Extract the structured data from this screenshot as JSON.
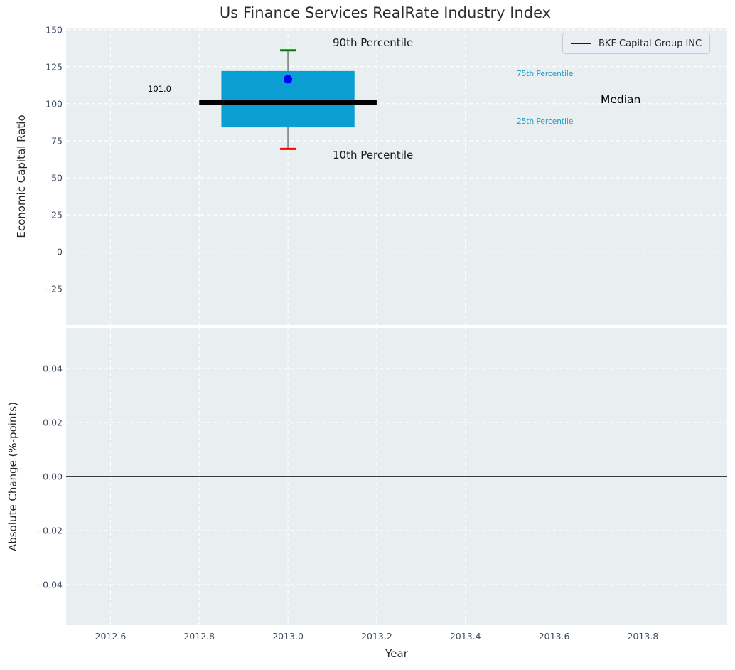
{
  "chart_data": {
    "type": "box",
    "title": "Us Finance Services RealRate Industry Index",
    "legend": {
      "label": "BKF Capital Group INC",
      "position": "upper right"
    },
    "xlabel": "Year",
    "grid": true,
    "xlim": [
      2012.5,
      2013.99
    ],
    "xtick_values": [
      2012.6,
      2012.8,
      2013.0,
      2013.2,
      2013.4,
      2013.6,
      2013.8
    ],
    "xtick_labels": [
      "2012.6",
      "2012.8",
      "2013.0",
      "2013.2",
      "2013.4",
      "2013.6",
      "2013.8"
    ],
    "panels": [
      {
        "ylabel": "Economic Capital Ratio",
        "ylim": [
          -49.3,
          151.2
        ],
        "ytick_values": [
          150,
          125,
          100,
          75,
          50,
          25,
          0,
          -25
        ],
        "ytick_labels": [
          "150",
          "125",
          "100",
          "75",
          "50",
          "25",
          "0",
          "−25"
        ],
        "box": {
          "year": 2013.0,
          "p10": 69.5,
          "p25": 84,
          "median": 101.0,
          "p75": 122,
          "p90": 136,
          "company_value": 116.5,
          "box_x_range": [
            2012.85,
            2013.15
          ],
          "median_x_range": [
            2012.8,
            2013.2
          ]
        },
        "annotations": {
          "p90_label": "90th Percentile",
          "p10_label": "10th Percentile",
          "p75_label": "75th Percentile",
          "median_label": "Median",
          "p25_label": "25th Percentile",
          "median_value_label": "101.0"
        }
      },
      {
        "ylabel": "Absolute Change (%-points)",
        "ylim": [
          -0.055,
          0.055
        ],
        "ytick_values": [
          0.04,
          0.02,
          0,
          -0.02,
          -0.04
        ],
        "ytick_labels": [
          "0.04",
          "0.02",
          "0.00",
          "−0.02",
          "−0.04"
        ],
        "zero_line": 0.0
      }
    ],
    "colors": {
      "box_fill": "#0a9ed2",
      "median_line": "#000000",
      "whisker": "#7a7a7a",
      "p90_cap": "#008000",
      "p10_cap": "#ff0000",
      "company_dot": "#0000ff",
      "legend_line": "#0000ff",
      "percentile_text": "#1c9ecb",
      "axes_background": "#e9eef0",
      "grid": "#ffffff",
      "tick_text": "#3e4c60",
      "zero_line": "#000000"
    }
  }
}
